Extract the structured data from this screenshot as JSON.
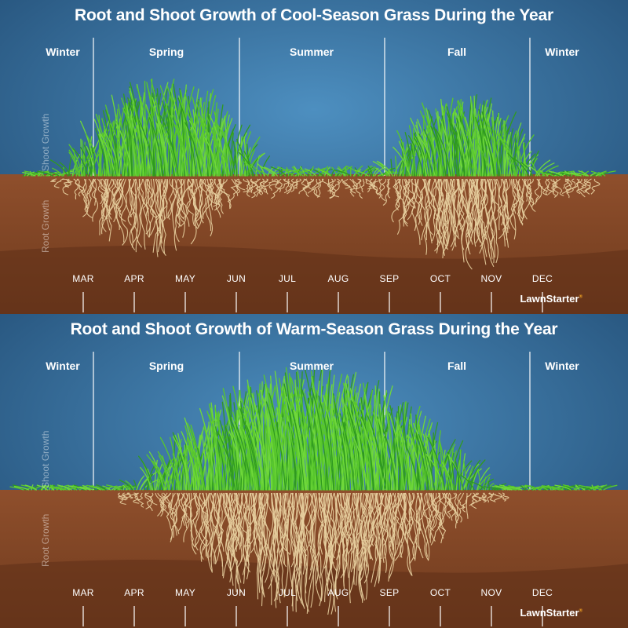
{
  "panels": [
    {
      "title": "Root and Shoot Growth of Cool-Season Grass During the Year",
      "seasons": [
        "Winter",
        "Spring",
        "Summer",
        "Fall",
        "Winter"
      ],
      "shoot_label": "Shoot Growth",
      "root_label": "Root Growth",
      "months": [
        "MAR",
        "APR",
        "MAY",
        "JUN",
        "JUL",
        "AUG",
        "SEP",
        "OCT",
        "NOV",
        "DEC"
      ],
      "brand": "LawnStarter",
      "brand_mark": "®"
    },
    {
      "title": "Root and Shoot Growth of Warm-Season Grass During the Year",
      "seasons": [
        "Winter",
        "Spring",
        "Summer",
        "Fall",
        "Winter"
      ],
      "shoot_label": "Shoot Growth",
      "root_label": "Root Growth",
      "months": [
        "MAR",
        "APR",
        "MAY",
        "JUN",
        "JUL",
        "AUG",
        "SEP",
        "OCT",
        "NOV",
        "DEC"
      ],
      "brand": "LawnStarter",
      "brand_mark": "®"
    }
  ],
  "colors": {
    "sky": "#2f6a9a",
    "sky_dark": "#24527a",
    "grass": "#6fd83a",
    "grass_dark": "#2f9a1f",
    "soil": "#8a4a28",
    "soil_dark": "#6b3519",
    "root": "#e8d0a0",
    "brand_accent": "#f5a623"
  }
}
